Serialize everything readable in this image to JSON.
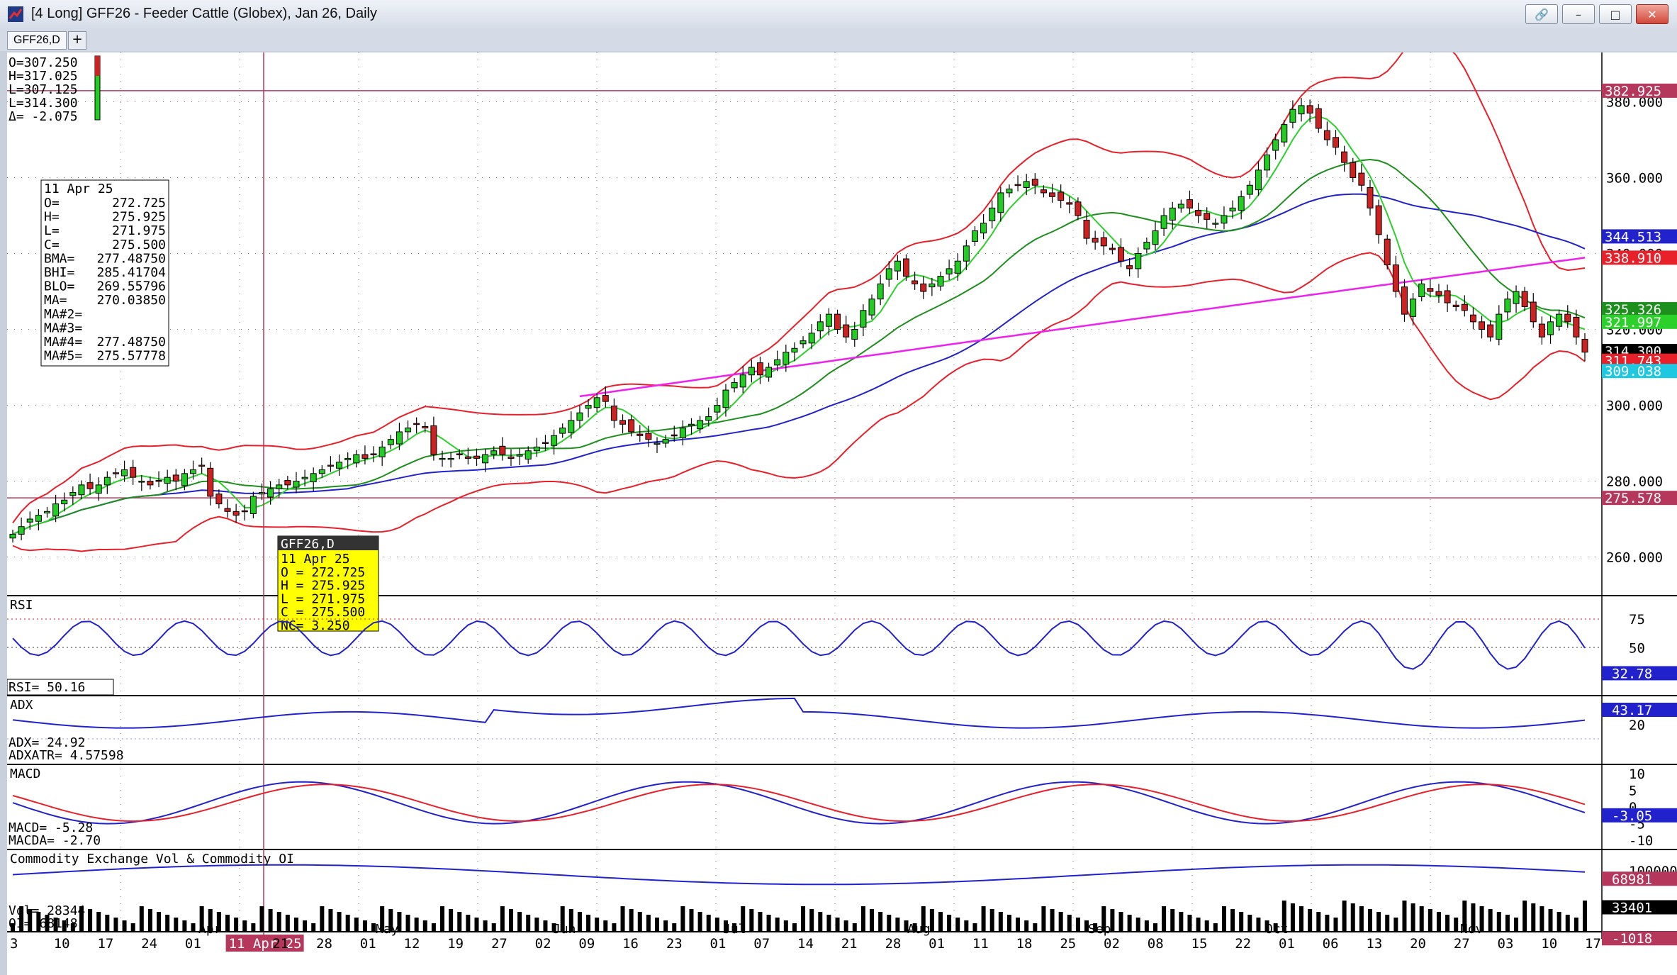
{
  "window": {
    "title": "[4 Long]  GFF26 - Feeder Cattle (Globex), Jan 26, Daily",
    "tab_label": "GFF26,D",
    "tab_add": "+",
    "buttons": {
      "pin": "🔗",
      "minimize": "–",
      "maximize": "□",
      "close": "✕"
    }
  },
  "ohlc_top": [
    "O=307.250",
    "H=317.025",
    "L=307.125",
    "L=314.300",
    "Δ= -2.075"
  ],
  "data_window": {
    "date": "11 Apr 25",
    "rows": [
      [
        "O=",
        "272.725"
      ],
      [
        "H=",
        "275.925"
      ],
      [
        "L=",
        "271.975"
      ],
      [
        "C=",
        "275.500"
      ],
      [
        "BMA=",
        "277.48750"
      ],
      [
        "BHI=",
        "285.41704"
      ],
      [
        "BLO=",
        "269.55796"
      ],
      [
        "MA=",
        "270.03850"
      ],
      [
        "MA#2=",
        ""
      ],
      [
        "MA#3=",
        ""
      ],
      [
        "MA#4=",
        "277.48750"
      ],
      [
        "MA#5=",
        "275.57778"
      ]
    ]
  },
  "cursor_popup": {
    "title": "GFF26,D",
    "rows": [
      "11 Apr 25",
      "O  = 272.725",
      "H  = 275.925",
      "L  = 271.975",
      "C  = 275.500",
      "NC=    3.250"
    ]
  },
  "panels": {
    "rsi": {
      "label": "RSI",
      "readout": "RSI=    50.16",
      "ticks": [
        "75",
        "50"
      ],
      "last": "32.78"
    },
    "adx": {
      "label": "ADX",
      "readout": [
        "ADX=      24.92",
        "ADXATR= 4.57598"
      ],
      "ticks": [
        "20"
      ],
      "last": "43.17"
    },
    "macd": {
      "label": "MACD",
      "readout": [
        "MACD=    -5.28",
        "MACDA=   -2.70"
      ],
      "ticks": [
        "10",
        "5",
        "0",
        "-5",
        "-10"
      ],
      "last": "-3.05"
    },
    "volume": {
      "label": "Commodity Exchange Vol & Commodity OI",
      "readout": [
        "Vol=     28344",
        "OI=     68148"
      ],
      "ticks": [
        "100000"
      ],
      "tags": [
        "68981",
        "33401",
        "-1018"
      ]
    }
  },
  "price_axis": {
    "ticks": [
      "380.000",
      "360.000",
      "340.000",
      "320.000",
      "300.000",
      "280.000",
      "260.000"
    ],
    "tags": [
      {
        "text": "382.925",
        "color": "#b5375c"
      },
      {
        "text": "344.513",
        "color": "#2222cc"
      },
      {
        "text": "338.910",
        "color": "#e8202a"
      },
      {
        "text": "325.326",
        "color": "#1d8f1d"
      },
      {
        "text": "321.997",
        "color": "#2bd02b"
      },
      {
        "text": "314.300",
        "color": "#000000"
      },
      {
        "text": "311.743",
        "color": "#e8202a"
      },
      {
        "text": "309.038",
        "color": "#1ec8e0"
      },
      {
        "text": "275.578",
        "color": "#b5375c"
      }
    ]
  },
  "time_axis": {
    "ticks": [
      "3",
      "10",
      "17",
      "24",
      "01",
      "11 Apr 25",
      "21",
      "28",
      "01",
      "12",
      "19",
      "27",
      "02",
      "09",
      "16",
      "23",
      "01",
      "07",
      "14",
      "21",
      "28",
      "01",
      "11",
      "18",
      "25",
      "02",
      "08",
      "15",
      "22",
      "01",
      "06",
      "13",
      "20",
      "27",
      "03",
      "10",
      "17"
    ],
    "months": [
      "Apr",
      "May",
      "Jun",
      "Jul",
      "Aug",
      "Sep",
      "Oct",
      "Nov"
    ]
  },
  "chart_data": {
    "type": "candlestick",
    "y_range": [
      250,
      393
    ],
    "closes": [
      266,
      268,
      270,
      271,
      272,
      274,
      275,
      277,
      279,
      278,
      279,
      281,
      282,
      283,
      281,
      280,
      279,
      280,
      281,
      280,
      282,
      283,
      284,
      276,
      274,
      272,
      271,
      272,
      276,
      277,
      278,
      279,
      279,
      280,
      281,
      282,
      283,
      284,
      285,
      286,
      287,
      286,
      287,
      289,
      291,
      293,
      294,
      295,
      294,
      287,
      286,
      286,
      287,
      286,
      286,
      287,
      288,
      287,
      286,
      287,
      288,
      289,
      290,
      292,
      294,
      296,
      298,
      300,
      302,
      301,
      296,
      295,
      293,
      292,
      291,
      290,
      291,
      292,
      294,
      295,
      296,
      297,
      300,
      304,
      306,
      308,
      310,
      308,
      310,
      312,
      314,
      315,
      317,
      319,
      322,
      324,
      320,
      318,
      320,
      325,
      328,
      332,
      336,
      338,
      334,
      332,
      330,
      332,
      334,
      336,
      338,
      342,
      346,
      348,
      352,
      356,
      357,
      358,
      359,
      358,
      356,
      355,
      354,
      353,
      350,
      344,
      343,
      342,
      341,
      338,
      336,
      340,
      343,
      346,
      350,
      352,
      353,
      352,
      350,
      349,
      348,
      350,
      352,
      355,
      358,
      362,
      366,
      370,
      374,
      378,
      379,
      377,
      373,
      370,
      368,
      364,
      360,
      358,
      352,
      345,
      337,
      330,
      324,
      328,
      332,
      330,
      329,
      327,
      326,
      325,
      322,
      320,
      318,
      324,
      328,
      330,
      326,
      322,
      318,
      322,
      324,
      322,
      318,
      314
    ],
    "ma_fast_last": 321.997,
    "ma_slow_last": 325.326,
    "ma_blue_last": 344.513,
    "boll_upper_last": 338.91,
    "boll_lower_last": 311.743,
    "ma_magenta_last": 338.9,
    "hline_high": 382.925,
    "hline_low": 275.578
  }
}
